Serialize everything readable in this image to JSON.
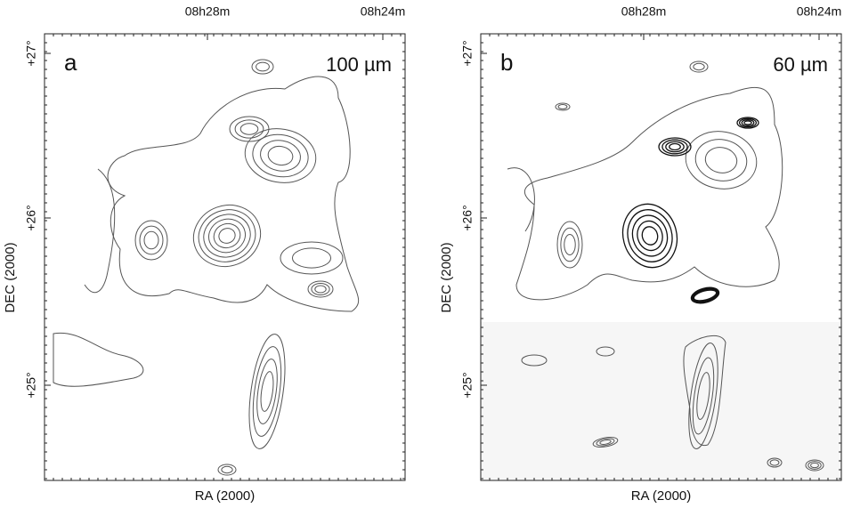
{
  "panels": [
    {
      "label": "a",
      "band": "100 µm",
      "ra_ticks": [
        "08h28m",
        "08h24m"
      ],
      "dec_ticks": [
        "+27°",
        "+26°",
        "+25°"
      ],
      "x_label": "RA (2000)",
      "y_label": "DEC (2000)"
    },
    {
      "label": "b",
      "band": "60  µm",
      "ra_ticks": [
        "08h28m",
        "08h24m"
      ],
      "dec_ticks": [
        "+27°",
        "+26°",
        "+25°"
      ],
      "x_label": "RA (2000)",
      "y_label": "DEC (2000)"
    }
  ]
}
